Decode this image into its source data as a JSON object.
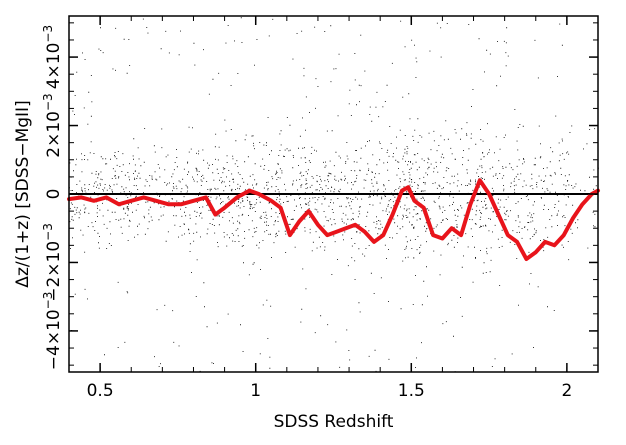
{
  "chart_data": {
    "type": "scatter",
    "title": "",
    "xlabel": "SDSS Redshift",
    "ylabel": "Δz/(1+z)  [SDSS−MgII]",
    "xlim": [
      0.4,
      2.1
    ],
    "ylim": [
      -0.0052,
      0.0052
    ],
    "x_ticks": [
      0.5,
      1,
      1.5,
      2
    ],
    "x_tick_labels": [
      "0.5",
      "1",
      "1.5",
      "2"
    ],
    "y_ticks": [
      -0.004,
      -0.002,
      0,
      0.002,
      0.004
    ],
    "y_tick_labels": [
      {
        "mantissa": "−4×10",
        "exp": "−3"
      },
      {
        "mantissa": "−2×10",
        "exp": "−3"
      },
      {
        "mantissa": "0",
        "exp": ""
      },
      {
        "mantissa": "2×10",
        "exp": "−3"
      },
      {
        "mantissa": "4×10",
        "exp": "−3"
      }
    ],
    "zero_line": 0,
    "grid": false,
    "scatter": {
      "color": "#000000",
      "description_density": "Dense cloud of individual quasar points spanning z=0.4–2.1 with scatter increasing toward higher redshift"
    },
    "series": [
      {
        "color": "#e8141b",
        "x": [
          0.4,
          0.44,
          0.48,
          0.52,
          0.56,
          0.6,
          0.64,
          0.68,
          0.72,
          0.76,
          0.8,
          0.84,
          0.87,
          0.9,
          0.94,
          0.98,
          1.01,
          1.05,
          1.08,
          1.11,
          1.14,
          1.17,
          1.2,
          1.23,
          1.26,
          1.29,
          1.32,
          1.35,
          1.38,
          1.41,
          1.44,
          1.47,
          1.49,
          1.51,
          1.54,
          1.57,
          1.6,
          1.63,
          1.66,
          1.69,
          1.72,
          1.75,
          1.78,
          1.81,
          1.84,
          1.87,
          1.9,
          1.93,
          1.96,
          1.99,
          2.02,
          2.05,
          2.08,
          2.1
        ],
        "y": [
          -0.00015,
          -0.0001,
          -0.0002,
          -0.0001,
          -0.0003,
          -0.0002,
          -0.0001,
          -0.0002,
          -0.0003,
          -0.0003,
          -0.0002,
          -0.0001,
          -0.0006,
          -0.0004,
          -0.0001,
          0.0001,
          0.0,
          -0.0002,
          -0.0004,
          -0.0012,
          -0.0008,
          -0.0005,
          -0.0009,
          -0.0012,
          -0.0011,
          -0.001,
          -0.0009,
          -0.0011,
          -0.0014,
          -0.0012,
          -0.0006,
          0.0001,
          0.0002,
          -0.0002,
          -0.0004,
          -0.0012,
          -0.0013,
          -0.001,
          -0.0012,
          -0.0003,
          0.0004,
          0.0,
          -0.0006,
          -0.0012,
          -0.0014,
          -0.0019,
          -0.0017,
          -0.0014,
          -0.0015,
          -0.0012,
          -0.0007,
          -0.0003,
          0.0,
          0.0001
        ]
      }
    ]
  }
}
